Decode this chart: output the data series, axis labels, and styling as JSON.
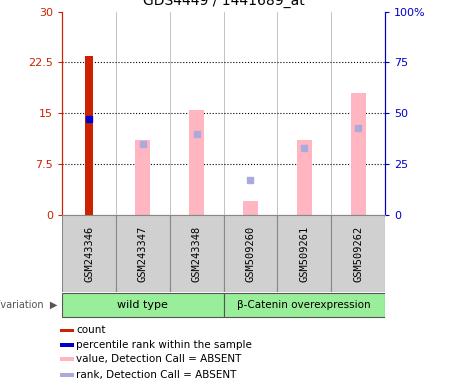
{
  "title": "GDS4449 / 1441689_at",
  "samples": [
    "GSM243346",
    "GSM243347",
    "GSM243348",
    "GSM509260",
    "GSM509261",
    "GSM509262"
  ],
  "count_values": [
    23.5,
    null,
    null,
    null,
    null,
    null
  ],
  "percentile_rank_values_pct": [
    47.0,
    null,
    null,
    null,
    null,
    null
  ],
  "value_absent_left": [
    null,
    11.0,
    15.5,
    2.0,
    11.0,
    18.0
  ],
  "rank_absent_pct": [
    null,
    35.0,
    40.0,
    17.0,
    33.0,
    43.0
  ],
  "ylim_left": [
    0,
    30
  ],
  "ylim_right": [
    0,
    100
  ],
  "yticks_left": [
    0,
    7.5,
    15,
    22.5,
    30
  ],
  "ytick_labels_left": [
    "0",
    "7.5",
    "15",
    "22.5",
    "30"
  ],
  "yticks_right_vals": [
    0,
    25,
    50,
    75,
    100
  ],
  "ytick_labels_right": [
    "0",
    "25",
    "50",
    "75",
    "100%"
  ],
  "count_color": "#cc2200",
  "percentile_color": "#0000cc",
  "value_absent_color": "#ffb6c1",
  "rank_absent_color": "#aaaadd",
  "plot_bg": "#ffffff",
  "sample_box_color": "#d0d0d0",
  "wt_color": "#99ee99",
  "bc_color": "#99ee99",
  "legend_items": [
    {
      "label": "count",
      "color": "#cc2200"
    },
    {
      "label": "percentile rank within the sample",
      "color": "#0000cc"
    },
    {
      "label": "value, Detection Call = ABSENT",
      "color": "#ffb6c1"
    },
    {
      "label": "rank, Detection Call = ABSENT",
      "color": "#aaaadd"
    }
  ],
  "genotype_label": "genotype/variation"
}
